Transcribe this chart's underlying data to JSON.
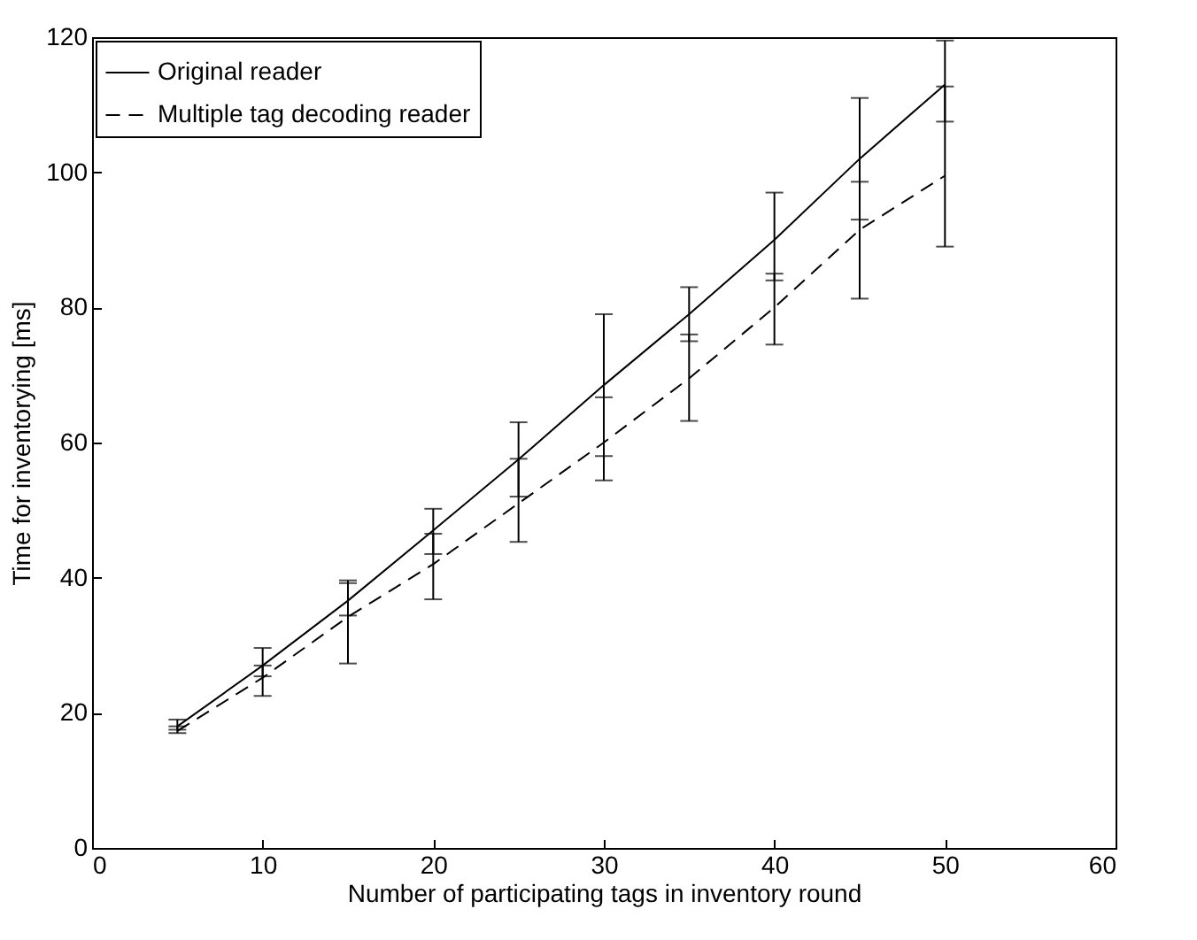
{
  "chart_data": {
    "type": "line",
    "xlabel": "Number of participating tags in inventory round",
    "ylabel": "Time for inventorying [ms]",
    "x": [
      5,
      10,
      15,
      20,
      25,
      30,
      35,
      40,
      45,
      50
    ],
    "series": [
      {
        "name": "Original reader",
        "color": "#000000",
        "line_style": "solid",
        "values": [
          18,
          27,
          36.6,
          47,
          57.5,
          68.5,
          79,
          90,
          102,
          113
        ],
        "errors": [
          [
            17.5,
            19
          ],
          [
            25.4,
            29.6
          ],
          [
            34.4,
            39.6
          ],
          [
            43.5,
            50.2
          ],
          [
            52,
            63
          ],
          [
            58,
            79
          ],
          [
            75,
            83
          ],
          [
            84,
            97
          ],
          [
            93,
            111
          ],
          [
            107.5,
            119.5
          ]
        ]
      },
      {
        "name": "Multiple tag decoding reader",
        "color": "#000000",
        "line_style": "dashed",
        "values": [
          17.3,
          25.2,
          34.2,
          42,
          51,
          60,
          69.5,
          80,
          91.5,
          99.5
        ],
        "errors": [
          [
            17,
            18
          ],
          [
            22.5,
            27
          ],
          [
            27.3,
            39.2
          ],
          [
            36.8,
            46.5
          ],
          [
            45.3,
            57.6
          ],
          [
            54.4,
            66.7
          ],
          [
            63.2,
            76
          ],
          [
            74.5,
            85
          ],
          [
            81.3,
            98.6
          ],
          [
            89,
            112.7
          ]
        ]
      }
    ],
    "xlim": [
      0,
      60
    ],
    "xticks": [
      0,
      10,
      20,
      30,
      40,
      50,
      60
    ],
    "ylim": [
      0,
      120
    ],
    "yticks": [
      0,
      20,
      40,
      60,
      80,
      100,
      120
    ],
    "grid": false,
    "legend": "top left"
  }
}
